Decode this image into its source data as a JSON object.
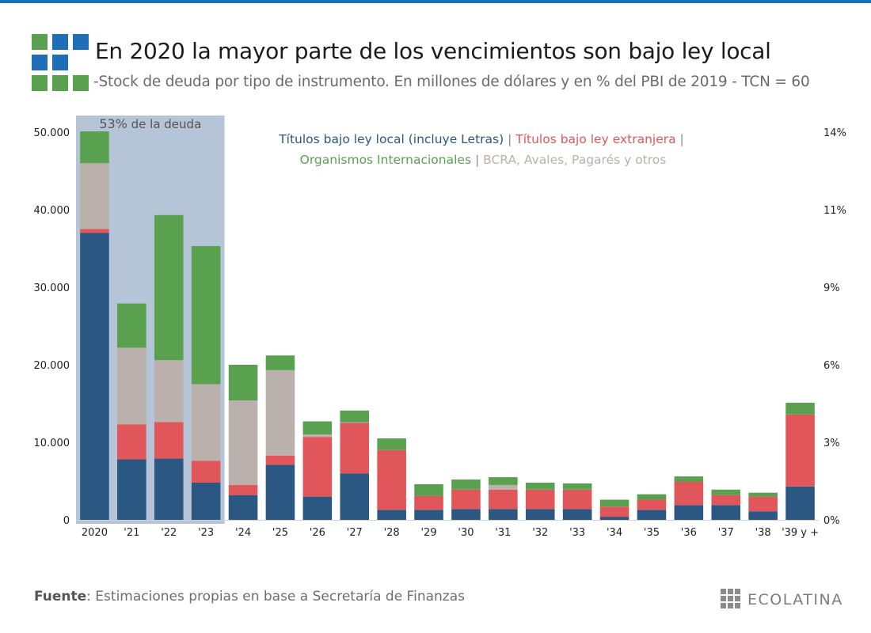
{
  "header": {
    "title": "En 2020 la mayor parte de los vencimientos son bajo ley local",
    "subtitle": "-Stock de deuda por tipo de instrumento. En millones de dólares y en % del PBI de 2019 - TCN = 60"
  },
  "highlight": {
    "label_pct": "53%",
    "label_text": " de la deuda"
  },
  "legend": {
    "local": "Títulos bajo ley local (incluye Letras)",
    "sep1": " | ",
    "extranjera": "Títulos bajo ley extranjera",
    "sep2": " |",
    "organismos": "Organismos Internacionales",
    "sep3": " | ",
    "bcra": "BCRA, Avales, Pagarés y otros"
  },
  "colors": {
    "local": "#2b5783",
    "extranjera": "#e0565b",
    "organismos": "#59a14f",
    "bcra": "#bab0ac",
    "highlight": "#b5c4d6",
    "accent": "#1f6fb8"
  },
  "chart_data": {
    "type": "bar",
    "stacked": true,
    "categories": [
      "2020",
      "'21",
      "'22",
      "'23",
      "'24",
      "'25",
      "'26",
      "'27",
      "'28",
      "'29",
      "'30",
      "'31",
      "'32",
      "'33",
      "'34",
      "'35",
      "'36",
      "'37",
      "'38",
      "'39 y +"
    ],
    "series": [
      {
        "name": "Títulos bajo ley local (incluye Letras)",
        "key": "local",
        "values": [
          37000,
          7800,
          7900,
          4800,
          3200,
          7100,
          3000,
          6000,
          1300,
          1300,
          1400,
          1400,
          1400,
          1400,
          400,
          1300,
          1900,
          1900,
          1100,
          4300
        ]
      },
      {
        "name": "Títulos bajo ley extranjera",
        "key": "extranjera",
        "values": [
          500,
          4500,
          4700,
          2800,
          1300,
          1200,
          7700,
          6500,
          7700,
          1800,
          2500,
          2500,
          2500,
          2500,
          1300,
          1300,
          3000,
          1300,
          1900,
          9300
        ]
      },
      {
        "name": "BCRA, Avales, Pagarés y otros",
        "key": "bcra",
        "values": [
          8500,
          9900,
          8000,
          9900,
          10900,
          11000,
          300,
          100,
          0,
          0,
          0,
          600,
          0,
          0,
          0,
          0,
          0,
          0,
          0,
          0
        ]
      },
      {
        "name": "Organismos Internacionales",
        "key": "organismos",
        "values": [
          4100,
          5700,
          18700,
          17800,
          4600,
          1900,
          1700,
          1500,
          1500,
          1500,
          1300,
          1000,
          900,
          800,
          900,
          700,
          700,
          700,
          500,
          1500
        ]
      }
    ],
    "y_left": {
      "min": 0,
      "max": 50000,
      "ticks": [
        0,
        10000,
        20000,
        30000,
        40000,
        50000
      ],
      "tick_labels": [
        "0",
        "10.000",
        "20.000",
        "30.000",
        "40.000",
        "50.000"
      ]
    },
    "y_right": {
      "tick_labels": [
        "0%",
        "3%",
        "6%",
        "9%",
        "11%",
        "14%"
      ]
    },
    "highlight_categories": [
      "2020",
      "'21",
      "'22",
      "'23"
    ],
    "grid": false
  },
  "footer": {
    "source_label": "Fuente",
    "source_text": ": Estimaciones propias en base a Secretaría de Finanzas",
    "brand": "ECOLATINA"
  }
}
